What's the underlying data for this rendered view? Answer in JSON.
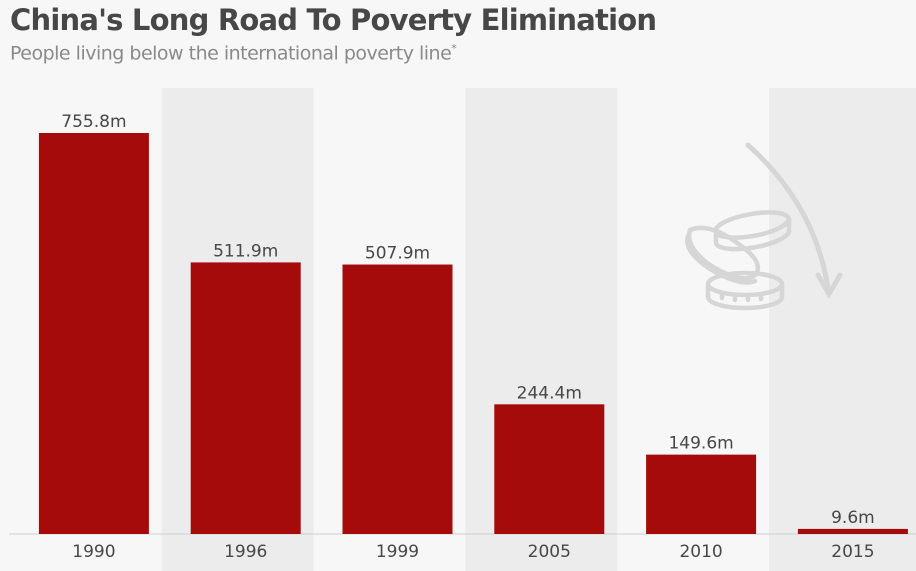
{
  "header": {
    "title": "China's Long Road To Poverty Elimination",
    "subtitle": "People living below the international poverty line",
    "footnote_mark": "*"
  },
  "colors": {
    "bar": "#a50b0b",
    "background": "#f7f7f7",
    "band": "#ececec",
    "text": "#474747",
    "icon": "#d6d6d6"
  },
  "icons": [
    "coins-icon",
    "down-arrow-icon"
  ],
  "chart_data": {
    "type": "bar",
    "title": "China's Long Road To Poverty Elimination",
    "subtitle": "People living below the international poverty line*",
    "categories": [
      "1990",
      "1996",
      "1999",
      "2005",
      "2010",
      "2015"
    ],
    "values": [
      755.8,
      511.9,
      507.9,
      244.4,
      149.6,
      9.6
    ],
    "labels": [
      "755.8m",
      "511.9m",
      "507.9m",
      "244.4m",
      "149.6m",
      "9.6m"
    ],
    "unit": "million people",
    "xlabel": "",
    "ylabel": "",
    "ylim": [
      0,
      850
    ],
    "grid": false,
    "legend": "none"
  }
}
